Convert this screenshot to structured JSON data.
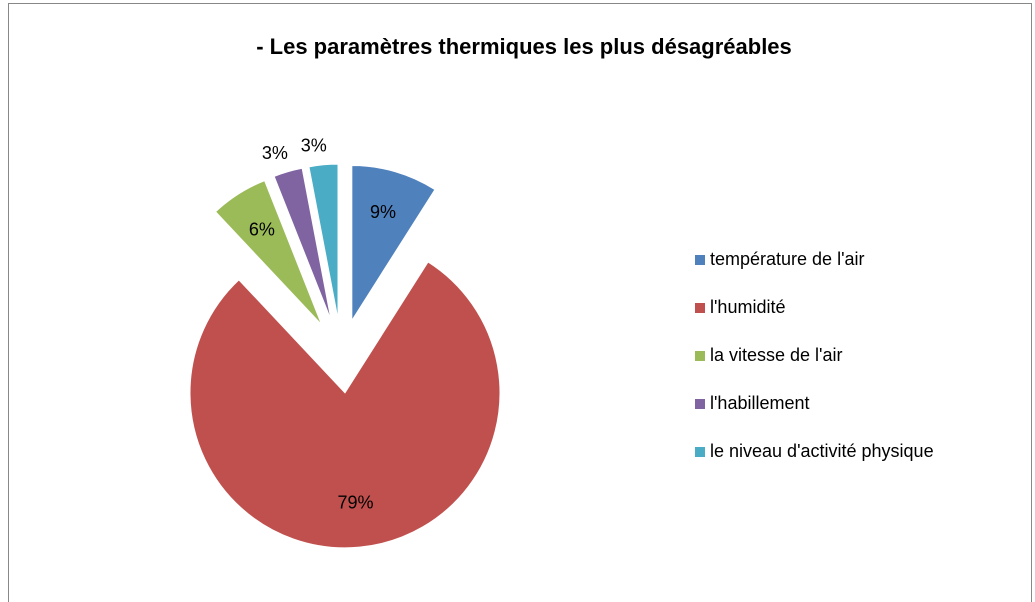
{
  "chart_data": {
    "type": "pie",
    "title": "- Les paramètres thermiques les plus désagréables",
    "categories": [
      "température de l'air",
      "l'humidité",
      "la vitesse de l'air",
      "l'habillement",
      "le niveau d'activité physique"
    ],
    "values": [
      9,
      79,
      6,
      3,
      3
    ],
    "value_labels": [
      "9%",
      "79%",
      "6%",
      "3%",
      "3%"
    ],
    "colors": [
      "#4f81bd",
      "#c0504d",
      "#9bbb59",
      "#8064a2",
      "#4bacc6"
    ],
    "legend": "right"
  }
}
